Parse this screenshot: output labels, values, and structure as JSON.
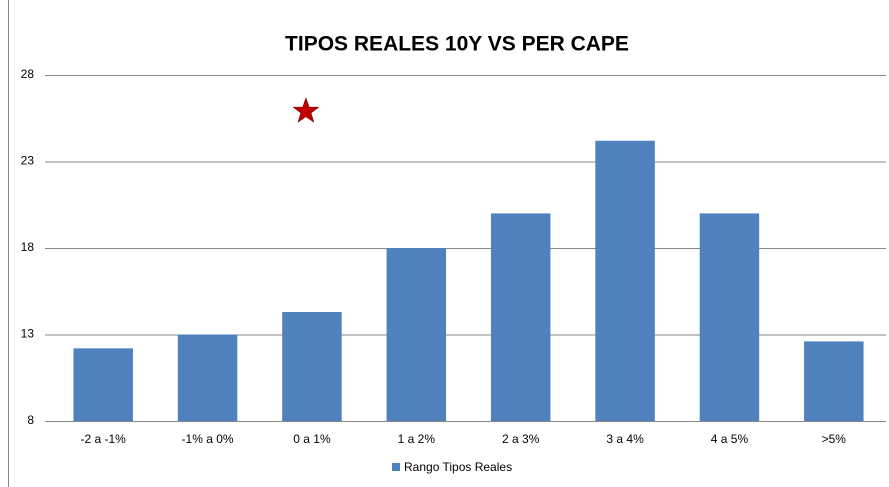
{
  "chart_data": {
    "type": "bar",
    "title": "TIPOS REALES 10Y VS PER CAPE",
    "categories": [
      "-2 a -1%",
      "-1% a 0%",
      "0 a 1%",
      "1 a 2%",
      "2 a 3%",
      "3 a 4%",
      "4 a 5%",
      ">5%"
    ],
    "series": [
      {
        "name": "Rango Tipos Reales",
        "color": "#4f81bd",
        "values": [
          12.2,
          13.0,
          14.3,
          18.0,
          20.0,
          24.2,
          20.0,
          12.6
        ]
      },
      {
        "type": "star",
        "color": "#c00000",
        "values": [
          null,
          null,
          25.9,
          null,
          null,
          null,
          null,
          null
        ]
      }
    ],
    "ylim": [
      8,
      28
    ],
    "yticks": [
      8,
      13,
      18,
      23,
      28
    ],
    "grid": true,
    "legend": "bottom"
  }
}
